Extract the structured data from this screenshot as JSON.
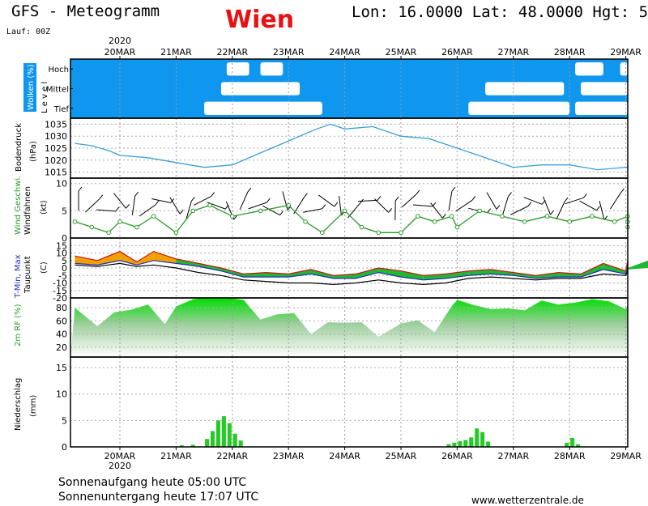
{
  "header": {
    "title": "GFS - Meteogramm",
    "city": "Wien",
    "coords": "Lon: 16.0000 Lat: 48.0000 Hgt: 5",
    "run": "Lauf: 00Z"
  },
  "footer": {
    "sunrise": "Sonnenaufgang heute 05:00 UTC",
    "sunset": "Sonnenuntergang heute 17:07 UTC",
    "website": "www.wetterzentrale.de"
  },
  "chart_data": {
    "type": "line",
    "year": "2020",
    "day_labels": [
      "20MAR",
      "21MAR",
      "22MAR",
      "23MAR",
      "24MAR",
      "25MAR",
      "26MAR",
      "27MAR",
      "28MAR",
      "29MAR"
    ],
    "x_range_days": [
      0,
      10
    ],
    "panels": {
      "clouds": {
        "ylabel": "Wolken (%)",
        "side_label": "L e v e l",
        "levels": [
          "Hoch",
          "Mittel",
          "Tief"
        ],
        "colors": {
          "cloud": "#ffffff",
          "sky": "#0f96ee"
        },
        "blocks": [
          {
            "level": "Hoch",
            "from": 1.9,
            "to": 2.3
          },
          {
            "level": "Hoch",
            "from": 2.5,
            "to": 2.9
          },
          {
            "level": "Hoch",
            "from": 8.1,
            "to": 8.6
          },
          {
            "level": "Hoch",
            "from": 8.9,
            "to": 9.4
          },
          {
            "level": "Mittel",
            "from": 1.8,
            "to": 3.2
          },
          {
            "level": "Mittel",
            "from": 6.5,
            "to": 7.9
          },
          {
            "level": "Mittel",
            "from": 8.2,
            "to": 9.4
          },
          {
            "level": "Tief",
            "from": 1.5,
            "to": 3.6
          },
          {
            "level": "Tief",
            "from": 6.2,
            "to": 8.0
          },
          {
            "level": "Tief",
            "from": 8.1,
            "to": 9.9
          }
        ]
      },
      "pressure": {
        "ylabel": "Bodendruck",
        "unit": "(hPa)",
        "ylim": [
          1012.5,
          1037.5
        ],
        "ticks": [
          1015,
          1020,
          1025,
          1030,
          1035
        ],
        "color": "#3aa0d8",
        "x": [
          -0.8,
          -0.5,
          -0.2,
          0,
          0.5,
          1,
          1.5,
          2,
          2.5,
          3,
          3.5,
          3.75,
          4,
          4.5,
          5,
          5.5,
          6,
          6.5,
          7,
          7.5,
          8,
          8.5,
          9,
          9.5,
          10
        ],
        "values": [
          1027,
          1026,
          1024,
          1022,
          1021,
          1019,
          1017,
          1018,
          1023,
          1028,
          1033,
          1035,
          1033,
          1034,
          1030,
          1029,
          1025,
          1021,
          1017,
          1018,
          1018,
          1016,
          1017,
          1017,
          1018
        ]
      },
      "wind": {
        "ylabel": "Wind Geschwi.",
        "ylabel2": "Windfahnen",
        "unit": "(kt)",
        "ylim": [
          0,
          11
        ],
        "ticks": [
          0,
          5,
          10
        ],
        "color": "#2a9a2a",
        "x": [
          -0.8,
          -0.5,
          -0.2,
          0,
          0.3,
          0.6,
          1,
          1.3,
          1.6,
          2,
          2.5,
          3,
          3.3,
          3.6,
          4,
          4.3,
          4.6,
          5,
          5.3,
          5.6,
          5.9,
          6,
          6.4,
          6.8,
          7.2,
          7.6,
          8,
          8.4,
          8.8,
          9.2,
          9.6,
          10
        ],
        "values": [
          3,
          2,
          1,
          3,
          2,
          4,
          1,
          5,
          6,
          4,
          5,
          6,
          3,
          1,
          5,
          2,
          1,
          1,
          4,
          3,
          4,
          2,
          5,
          4,
          3,
          4,
          3,
          4,
          3,
          4,
          3,
          2
        ]
      },
      "temperature": {
        "ylabel": "T-Min, Max",
        "ylabel2": "Taupunkt",
        "unit": "(C)",
        "ylim": [
          -20,
          20
        ],
        "ticks": [
          -20,
          -15,
          -10,
          -5,
          0,
          5,
          10,
          15
        ],
        "colors": {
          "tmin": "#2030c0",
          "tmax": "#d01010",
          "dew": "#000000",
          "fill_warm": "#f0a000",
          "fill_mild": "#20b830"
        },
        "x": [
          -0.8,
          -0.4,
          0,
          0.3,
          0.6,
          1,
          1.4,
          1.8,
          2.2,
          2.6,
          3,
          3.4,
          3.8,
          4.2,
          4.6,
          5,
          5.4,
          5.8,
          6.2,
          6.6,
          7,
          7.4,
          7.8,
          8.2,
          8.6,
          9,
          9.4,
          9.8
        ],
        "tmax": [
          8,
          5,
          11,
          4,
          11,
          6,
          3,
          0,
          -4,
          -3,
          -4,
          -1,
          -5,
          -4,
          0,
          -2,
          -5,
          -4,
          -2,
          -1,
          -3,
          -5,
          -3,
          -4,
          3,
          -2,
          5,
          0
        ],
        "tmin": [
          3,
          2,
          5,
          2,
          5,
          3,
          1,
          -2,
          -6,
          -6,
          -6,
          -4,
          -7,
          -7,
          -3,
          -6,
          -8,
          -7,
          -5,
          -4,
          -5,
          -7,
          -6,
          -6,
          -1,
          -4,
          0,
          -1
        ],
        "dew": [
          2,
          1,
          3,
          1,
          2,
          0,
          -3,
          -5,
          -8,
          -9,
          -10,
          -10,
          -11,
          -10,
          -8,
          -10,
          -11,
          -10,
          -7,
          -6,
          -7,
          -8,
          -7,
          -7,
          -4,
          -5,
          -2,
          -3
        ]
      },
      "humidity": {
        "ylabel": "2m RF (%)",
        "ylim": [
          5,
          95
        ],
        "ticks": [
          20,
          40,
          60,
          80
        ],
        "colors": {
          "top": "#00dd00",
          "bottom": "#ffffff"
        },
        "x": [
          -0.8,
          -0.4,
          -0.1,
          0.2,
          0.5,
          0.8,
          1,
          1.3,
          1.6,
          1.9,
          2.2,
          2.5,
          2.8,
          3.1,
          3.4,
          3.7,
          4,
          4.3,
          4.6,
          5,
          5.3,
          5.6,
          5.9,
          6,
          6.3,
          6.6,
          6.9,
          7.2,
          7.5,
          7.8,
          8.1,
          8.4,
          8.7,
          9,
          9.3,
          9.6,
          10
        ],
        "values": [
          80,
          52,
          73,
          77,
          85,
          55,
          82,
          93,
          95,
          95,
          92,
          62,
          70,
          72,
          40,
          58,
          57,
          58,
          36,
          56,
          61,
          43,
          82,
          92,
          84,
          78,
          79,
          76,
          91,
          85,
          88,
          93,
          90,
          78,
          85,
          90,
          88
        ]
      },
      "precipitation": {
        "ylabel": "Niederschlag",
        "unit": "(mm)",
        "ylim": [
          0,
          17
        ],
        "ticks": [
          0,
          5,
          10,
          15
        ],
        "colors": {
          "rain": "#22cc22",
          "snow": "#d02020"
        },
        "x": [
          1.1,
          1.3,
          1.55,
          1.65,
          1.75,
          1.85,
          1.95,
          2.05,
          2.15,
          5.85,
          5.95,
          6.05,
          6.15,
          6.25,
          6.35,
          6.45,
          6.55,
          7.95,
          8.05,
          8.15
        ],
        "values": [
          0.3,
          0.4,
          1.5,
          3,
          5,
          5.8,
          4.5,
          2.5,
          1.2,
          0.5,
          0.8,
          1.1,
          1.3,
          1.8,
          3.5,
          2.8,
          1,
          0.8,
          1.7,
          0.5
        ]
      }
    }
  }
}
